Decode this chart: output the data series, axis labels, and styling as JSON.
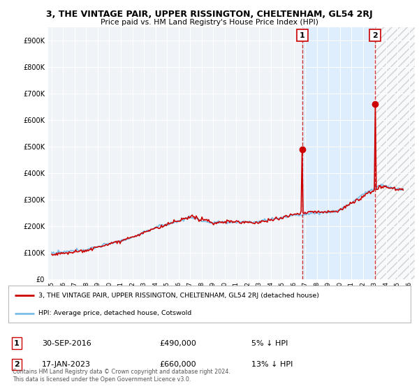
{
  "title": "3, THE VINTAGE PAIR, UPPER RISSINGTON, CHELTENHAM, GL54 2RJ",
  "subtitle": "Price paid vs. HM Land Registry's House Price Index (HPI)",
  "ylabel_ticks": [
    "£0",
    "£100K",
    "£200K",
    "£300K",
    "£400K",
    "£500K",
    "£600K",
    "£700K",
    "£800K",
    "£900K"
  ],
  "ytick_values": [
    0,
    100000,
    200000,
    300000,
    400000,
    500000,
    600000,
    700000,
    800000,
    900000
  ],
  "ylim": [
    0,
    950000
  ],
  "xlim_start": 1994.7,
  "xlim_end": 2026.5,
  "xtick_years": [
    1995,
    1996,
    1997,
    1998,
    1999,
    2000,
    2001,
    2002,
    2003,
    2004,
    2005,
    2006,
    2007,
    2008,
    2009,
    2010,
    2011,
    2012,
    2013,
    2014,
    2015,
    2016,
    2017,
    2018,
    2019,
    2020,
    2021,
    2022,
    2023,
    2024,
    2025,
    2026
  ],
  "hpi_color": "#7abde8",
  "price_color": "#cc0000",
  "vline_color": "#cc0000",
  "shade_color": "#ddeeff",
  "marker1_x": 2016.75,
  "marker1_y": 490000,
  "marker2_x": 2023.05,
  "marker2_y": 660000,
  "legend_line1": "3, THE VINTAGE PAIR, UPPER RISSINGTON, CHELTENHAM, GL54 2RJ (detached house)",
  "legend_line2": "HPI: Average price, detached house, Cotswold",
  "sale1_date": "30-SEP-2016",
  "sale1_price": "£490,000",
  "sale1_hpi": "5% ↓ HPI",
  "sale2_date": "17-JAN-2023",
  "sale2_price": "£660,000",
  "sale2_hpi": "13% ↓ HPI",
  "footer": "Contains HM Land Registry data © Crown copyright and database right 2024.\nThis data is licensed under the Open Government Licence v3.0.",
  "bg_color": "#ffffff",
  "plot_bg_color": "#f0f4f8"
}
